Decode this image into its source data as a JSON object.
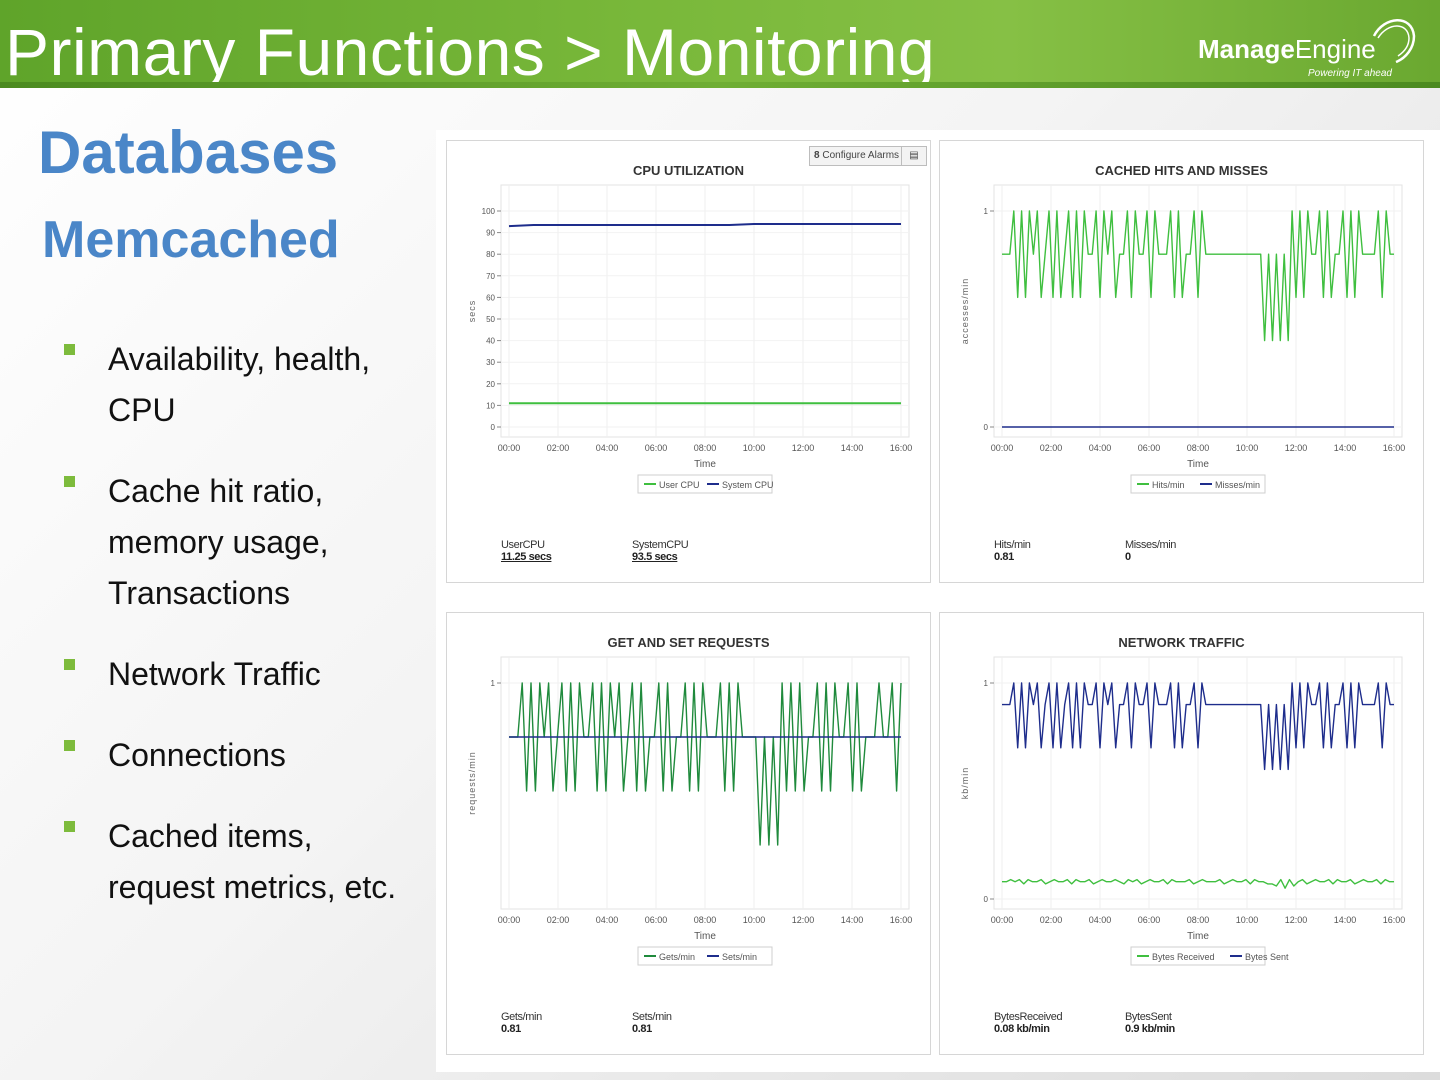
{
  "header": {
    "title": "Primary Functions > Monitoring",
    "logo": {
      "brand_bold": "Manage",
      "brand_light": "Engine",
      "tagline": "Powering IT ahead"
    }
  },
  "headings": {
    "section": "Databases",
    "subsection": "Memcached"
  },
  "bullets": [
    "Availability, health, CPU",
    "Cache hit ratio, memory usage, Transactions",
    "Network Traffic",
    "Connections",
    "Cached items, request metrics, etc."
  ],
  "colors": {
    "green": "#1f8a3c",
    "lightgreen": "#3fbf3f",
    "navy": "#1e2d8c",
    "accent": "#4a86c8"
  },
  "xticks": [
    "00:00",
    "02:00",
    "04:00",
    "06:00",
    "08:00",
    "10:00",
    "12:00",
    "14:00",
    "16:00"
  ],
  "panels": {
    "cpu": {
      "configure_alarms": "Configure Alarms",
      "stats": [
        {
          "label": "UserCPU",
          "value": "11.25 secs"
        },
        {
          "label": "SystemCPU",
          "value": "93.5 secs"
        }
      ]
    },
    "cache": {
      "stats": [
        {
          "label": "Hits/min",
          "value": "0.81"
        },
        {
          "label": "Misses/min",
          "value": "0"
        }
      ]
    },
    "getset": {
      "stats": [
        {
          "label": "Gets/min",
          "value": "0.81"
        },
        {
          "label": "Sets/min",
          "value": "0.81"
        }
      ]
    },
    "network": {
      "stats": [
        {
          "label": "BytesReceived",
          "value": "0.08 kb/min"
        },
        {
          "label": "BytesSent",
          "value": "0.9 kb/min"
        }
      ]
    }
  },
  "chart_data": [
    {
      "type": "line",
      "title": "CPU UTILIZATION",
      "xlabel": "Time",
      "ylabel": "secs",
      "xlim": [
        0,
        16
      ],
      "ylim": [
        0,
        100
      ],
      "yticks": [
        "0",
        "10",
        "20",
        "30",
        "40",
        "50",
        "60",
        "70",
        "80",
        "90",
        "100"
      ],
      "legend_position": "bottom",
      "series": [
        {
          "name": "User CPU",
          "color": "#3fbf3f",
          "values": [
            11,
            11,
            11,
            11,
            11,
            11,
            11,
            11,
            11,
            11,
            11,
            11,
            11,
            11,
            11,
            11,
            11
          ]
        },
        {
          "name": "System CPU",
          "color": "#1e2d8c",
          "values": [
            93,
            93.5,
            93.5,
            93.5,
            93.5,
            93.5,
            93.5,
            93.5,
            93.5,
            93.5,
            94,
            94,
            94,
            94,
            94,
            94,
            94
          ]
        }
      ]
    },
    {
      "type": "line",
      "title": "CACHED HITS AND MISSES",
      "xlabel": "Time",
      "ylabel": "accesses/min",
      "xlim": [
        0,
        16
      ],
      "ylim": [
        0,
        1
      ],
      "yticks": [
        "0",
        "1"
      ],
      "legend_position": "bottom",
      "series": [
        {
          "name": "Hits/min",
          "color": "#3fbf3f",
          "values": [
            0.8,
            0.8,
            0.8,
            1,
            0.6,
            1,
            0.6,
            1,
            0.8,
            1,
            0.6,
            0.8,
            1,
            0.6,
            1,
            0.6,
            0.8,
            1,
            0.6,
            1,
            0.6,
            1,
            0.8,
            0.8,
            1,
            0.6,
            1,
            0.8,
            1,
            0.6,
            0.8,
            0.8,
            1,
            0.6,
            1,
            0.8,
            0.8,
            1,
            0.6,
            1,
            0.8,
            0.8,
            0.8,
            1,
            0.6,
            1,
            0.6,
            0.8,
            0.8,
            1,
            0.6,
            1,
            0.8,
            0.8,
            0.8,
            0.8,
            0.8,
            0.8,
            0.8,
            0.8,
            0.8,
            0.8,
            0.8,
            0.8,
            0.8,
            0.8,
            0.8,
            0.4,
            0.8,
            0.4,
            0.8,
            0.4,
            0.8,
            0.4,
            1,
            0.6,
            1,
            0.6,
            1,
            0.8,
            0.8,
            1,
            0.6,
            1,
            0.6,
            0.8,
            0.8,
            1,
            0.6,
            1,
            0.6,
            1,
            0.8,
            0.8,
            0.8,
            0.8,
            1,
            0.6,
            1,
            0.8,
            0.8
          ]
        },
        {
          "name": "Misses/min",
          "color": "#1e2d8c",
          "values": [
            0,
            0
          ]
        }
      ]
    },
    {
      "type": "line",
      "title": "GET AND SET REQUESTS",
      "xlabel": "Time",
      "ylabel": "requests/min",
      "xlim": [
        0,
        16
      ],
      "ylim": [
        0,
        1
      ],
      "yticks": [
        "1"
      ],
      "legend_position": "bottom",
      "series": [
        {
          "name": "Gets/min",
          "color": "#1f8a3c",
          "values": [
            0.75,
            0.75,
            0.75,
            1,
            0.5,
            1,
            0.5,
            1,
            0.75,
            1,
            0.5,
            0.75,
            1,
            0.5,
            1,
            0.5,
            1,
            0.75,
            0.75,
            1,
            0.5,
            1,
            0.5,
            1,
            0.75,
            1,
            0.5,
            0.75,
            1,
            0.5,
            1,
            0.5,
            0.75,
            0.75,
            1,
            0.5,
            1,
            0.5,
            0.75,
            0.75,
            1,
            0.5,
            1,
            0.5,
            1,
            0.75,
            0.75,
            0.75,
            1,
            0.5,
            1,
            0.5,
            1,
            0.75,
            0.75,
            0.75,
            0.75,
            0.25,
            0.75,
            0.25,
            0.75,
            0.25,
            1,
            0.5,
            1,
            0.5,
            1,
            0.5,
            0.75,
            0.75,
            1,
            0.5,
            1,
            0.5,
            1,
            0.75,
            0.75,
            1,
            0.5,
            1,
            0.5,
            0.75,
            0.75,
            0.75,
            1,
            0.75,
            0.75,
            1,
            0.5,
            1
          ]
        },
        {
          "name": "Sets/min",
          "color": "#1e2d8c",
          "values": [
            0.75,
            0.75
          ]
        }
      ]
    },
    {
      "type": "line",
      "title": "NETWORK TRAFFIC",
      "xlabel": "Time",
      "ylabel": "kb/min",
      "xlim": [
        0,
        16
      ],
      "ylim": [
        0,
        1
      ],
      "yticks": [
        "0",
        "1"
      ],
      "legend_position": "bottom",
      "series": [
        {
          "name": "Bytes Received",
          "color": "#3fbf3f",
          "values": [
            0.08,
            0.08,
            0.09,
            0.08,
            0.09,
            0.07,
            0.09,
            0.08,
            0.08,
            0.09,
            0.07,
            0.08,
            0.09,
            0.08,
            0.08,
            0.09,
            0.07,
            0.09,
            0.08,
            0.08,
            0.09,
            0.07,
            0.08,
            0.09,
            0.08,
            0.08,
            0.09,
            0.08,
            0.07,
            0.09,
            0.08,
            0.09,
            0.07,
            0.08,
            0.09,
            0.08,
            0.08,
            0.09,
            0.07,
            0.09,
            0.08,
            0.08,
            0.08,
            0.09,
            0.07,
            0.08,
            0.09,
            0.08,
            0.08,
            0.08,
            0.09,
            0.07,
            0.08,
            0.09,
            0.08,
            0.08,
            0.09,
            0.07,
            0.09,
            0.08,
            0.08,
            0.07,
            0.07,
            0.06,
            0.09,
            0.05,
            0.09,
            0.06,
            0.08,
            0.09,
            0.07,
            0.08,
            0.09,
            0.08,
            0.08,
            0.09,
            0.07,
            0.09,
            0.08,
            0.08,
            0.09,
            0.07,
            0.08,
            0.09,
            0.08,
            0.08,
            0.09,
            0.07,
            0.09,
            0.08,
            0.08
          ]
        },
        {
          "name": "Bytes Sent",
          "color": "#1e2d8c",
          "values": [
            0.9,
            0.9,
            0.9,
            1,
            0.7,
            1,
            0.7,
            1,
            0.9,
            1,
            0.7,
            0.9,
            1,
            0.7,
            1,
            0.7,
            0.9,
            1,
            0.7,
            1,
            0.7,
            1,
            0.9,
            0.9,
            1,
            0.7,
            1,
            0.9,
            1,
            0.7,
            0.9,
            0.9,
            1,
            0.7,
            1,
            0.9,
            0.9,
            1,
            0.7,
            1,
            0.9,
            0.9,
            0.9,
            1,
            0.7,
            1,
            0.7,
            0.9,
            0.9,
            1,
            0.7,
            1,
            0.9,
            0.9,
            0.9,
            0.9,
            0.9,
            0.9,
            0.9,
            0.9,
            0.9,
            0.9,
            0.9,
            0.9,
            0.9,
            0.9,
            0.9,
            0.6,
            0.9,
            0.6,
            0.9,
            0.6,
            0.9,
            0.6,
            1,
            0.7,
            1,
            0.7,
            1,
            0.9,
            0.9,
            1,
            0.7,
            1,
            0.7,
            0.9,
            0.9,
            1,
            0.7,
            1,
            0.7,
            1,
            0.9,
            0.9,
            0.9,
            0.9,
            1,
            0.7,
            1,
            0.9,
            0.9
          ]
        }
      ]
    }
  ]
}
